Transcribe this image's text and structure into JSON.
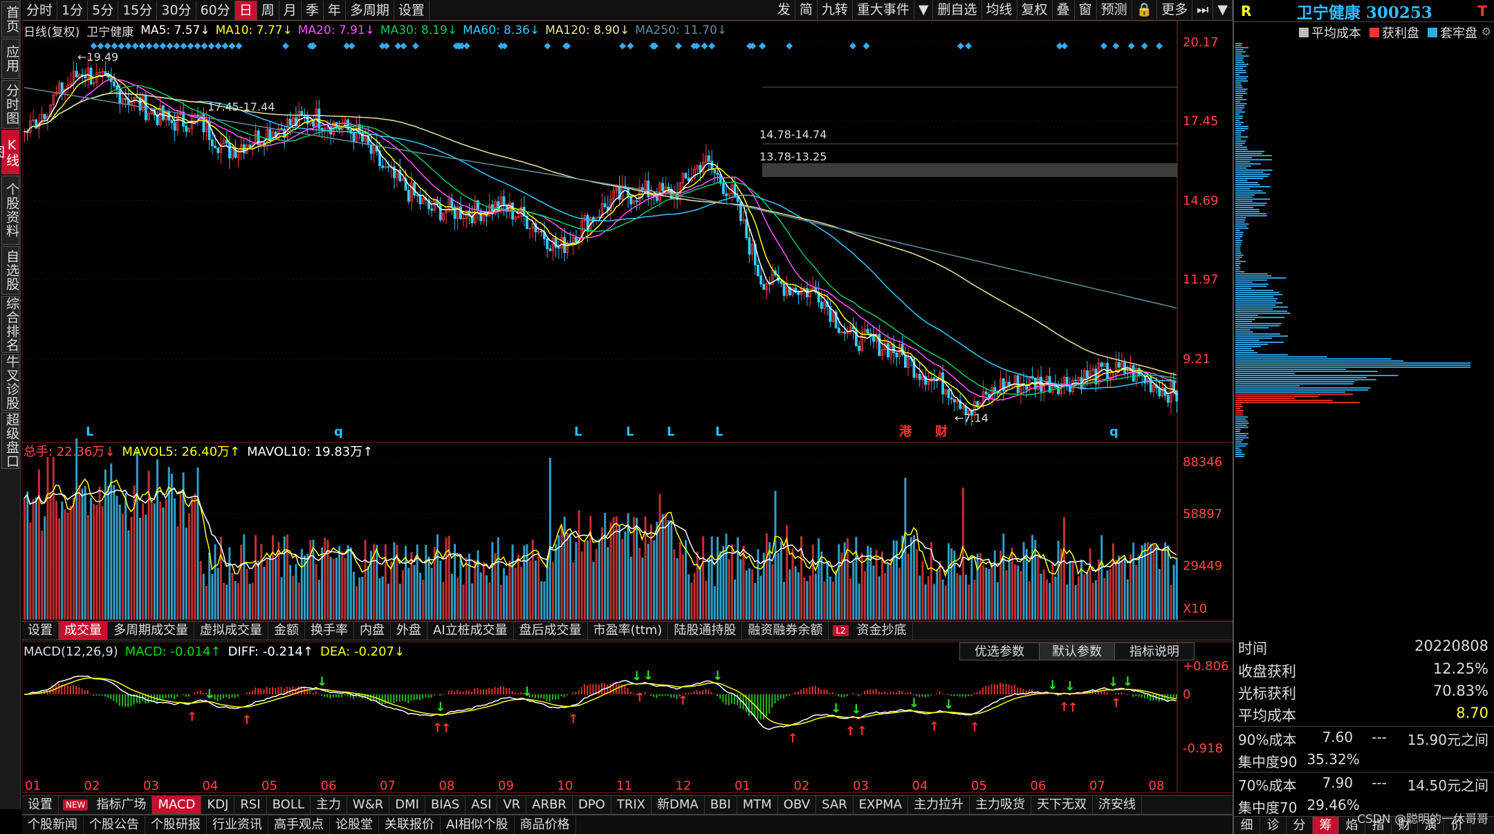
{
  "left_tabs": [
    "首页",
    "应用",
    "分时图",
    "K线图",
    "个股资料",
    "自选股",
    "综合排名",
    "牛叉诊股",
    "超级盘口"
  ],
  "period_tabs": [
    "分时",
    "1分",
    "5分",
    "15分",
    "30分",
    "60分",
    "日",
    "周",
    "月",
    "季",
    "年",
    "多周期",
    "设置"
  ],
  "active_period": "日",
  "right_tools": [
    "发",
    "简",
    "九转",
    "重大事件",
    "▼",
    "删自选",
    "均线",
    "复权",
    "叠",
    "窗",
    "预测",
    "🔒",
    "更多",
    "⏭",
    "▼"
  ],
  "ma_legend": {
    "prefix": "日线(复权)",
    "name": "卫宁健康",
    "items": [
      {
        "text": "MA5: 7.57↓",
        "color": "#ffffff"
      },
      {
        "text": "MA10: 7.77↓",
        "color": "#ffff00"
      },
      {
        "text": "MA20: 7.91↓",
        "color": "#ff55ff"
      },
      {
        "text": "MA30: 8.19↓",
        "color": "#00cc66"
      },
      {
        "text": "MA60: 8.36↓",
        "color": "#33ccff"
      },
      {
        "text": "MA120: 8.90↓",
        "color": "#e6e6a0"
      },
      {
        "text": "MA250: 11.70↓",
        "color": "#5f8fa0"
      }
    ]
  },
  "price_axis": [
    "20.17",
    "17.45",
    "14.69",
    "11.97",
    "9.21"
  ],
  "price_annotations": [
    "19.49",
    "17.45-17.44",
    "14.78-14.74",
    "13.78-13.25",
    "7.14"
  ],
  "bottom_marks": [
    "L",
    "q",
    "L",
    "L",
    "L",
    "L",
    "港",
    "财",
    "q"
  ],
  "volume_legend": [
    {
      "text": "总手: 22.36万↓",
      "color": "#ff4d4d"
    },
    {
      "text": "MAVOL5: 26.40万↑",
      "color": "#ffff00"
    },
    {
      "text": "MAVOL10: 19.83万↑",
      "color": "#ffffff"
    }
  ],
  "volume_axis": [
    "88346",
    "58897",
    "29449",
    "X10"
  ],
  "volume_tabs": [
    "设置",
    "成交量",
    "多周期成交量",
    "虚拟成交量",
    "金额",
    "换手率",
    "内盘",
    "外盘",
    "AI立桩成交量",
    "盘后成交量",
    "市盈率(ttm)",
    "陆股通持股",
    "融资融券余额",
    "L2",
    "资金抄底"
  ],
  "active_volume_tab": "成交量",
  "macd_legend": [
    {
      "text": "MACD(12,26,9)",
      "color": "#dddddd"
    },
    {
      "text": "MACD: -0.014↑",
      "color": "#00dd00"
    },
    {
      "text": "DIFF: -0.214↑",
      "color": "#ffffff"
    },
    {
      "text": "DEA: -0.207↓",
      "color": "#ffff00"
    }
  ],
  "macd_buttons": [
    "优选参数",
    "默认参数",
    "指标说明"
  ],
  "macd_axis": [
    "+0.806",
    "0",
    "-0.918"
  ],
  "month_labels": [
    "01",
    "02",
    "03",
    "04",
    "05",
    "06",
    "07",
    "08",
    "09",
    "10",
    "11",
    "12",
    "01",
    "02",
    "03",
    "04",
    "05",
    "06",
    "07",
    "08"
  ],
  "indicator_tabs": [
    "设置",
    "NEW",
    "指标广场",
    "MACD",
    "KDJ",
    "RSI",
    "BOLL",
    "主力",
    "W&R",
    "DMI",
    "BIAS",
    "ASI",
    "VR",
    "ARBR",
    "DPO",
    "TRIX",
    "新DMA",
    "BBI",
    "MTM",
    "OBV",
    "SAR",
    "EXPMA",
    "主力拉升",
    "主力吸货",
    "天下无双",
    "济安线"
  ],
  "active_indicator": "MACD",
  "news_tabs": [
    "个股新闻",
    "个股公告",
    "个股研报",
    "行业资讯",
    "高手观点",
    "论股堂",
    "关联报价",
    "AI相似个股",
    "商品价格"
  ],
  "right_panel": {
    "r_label": "R",
    "stock_title": "卫宁健康 300253",
    "t_label": "T",
    "legend": [
      {
        "text": "平均成本",
        "color": "#bbbbbb"
      },
      {
        "text": "获利盘",
        "color": "#ff3333"
      },
      {
        "text": "套牢盘",
        "color": "#33aadd"
      }
    ],
    "info": [
      {
        "label": "时间",
        "value": "20220808"
      },
      {
        "label": "收盘获利",
        "value": "12.25%"
      },
      {
        "label": "光标获利",
        "value": "70.83%"
      },
      {
        "label": "平均成本",
        "value": "8.70"
      }
    ],
    "cost90": {
      "label": "90%成本",
      "low": "7.60",
      "dash": "---",
      "high": "15.90元之间"
    },
    "conc90": {
      "label": "集中度90",
      "value": "35.32%"
    },
    "cost70": {
      "label": "70%成本",
      "low": "7.90",
      "dash": "---",
      "high": "14.50元之间"
    },
    "conc70": {
      "label": "集中度70",
      "value": "29.46%"
    },
    "bottom_tabs": [
      "细",
      "诊",
      "分",
      "筹",
      "焰",
      "指",
      "财",
      "演",
      "价"
    ],
    "active_bottom_tab": "筹",
    "watermark": "CSDN @聪明的一休哥哥"
  }
}
